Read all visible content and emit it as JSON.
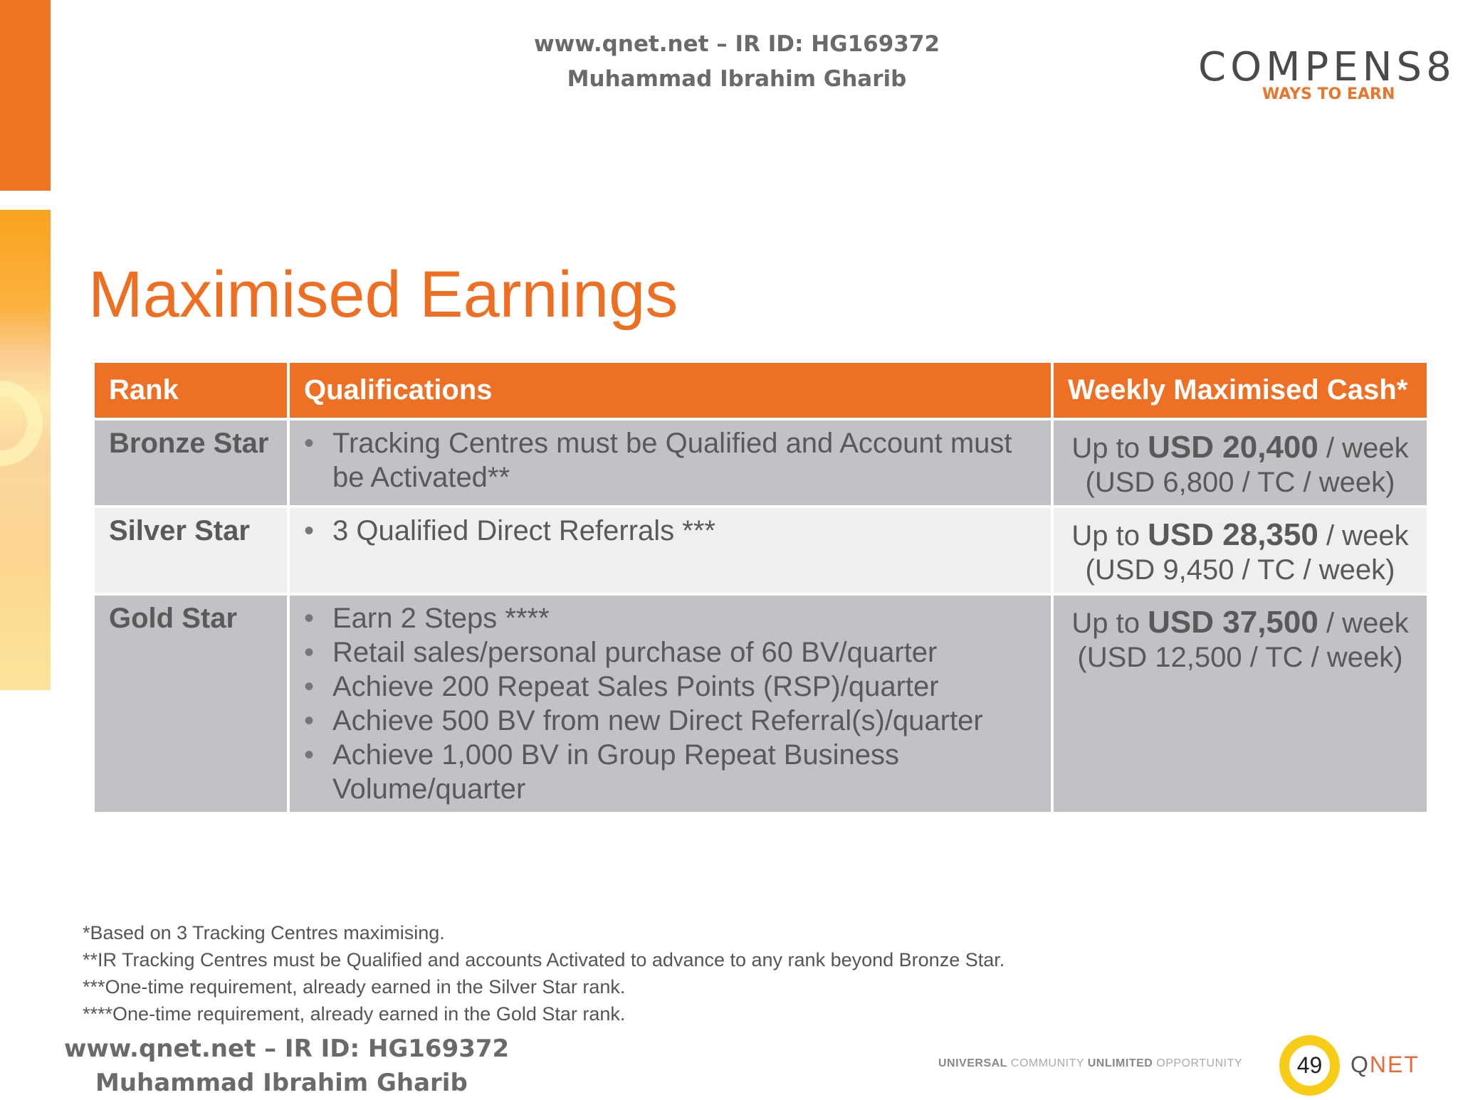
{
  "header": {
    "line1": "www.qnet.net – IR ID: HG169372",
    "line2": "Muhammad Ibrahim Gharib"
  },
  "logo": {
    "main": "COMPENS8",
    "sub": "WAYS TO EARN"
  },
  "title": "Maximised Earnings",
  "table": {
    "headers": [
      "Rank",
      "Qualifications",
      "Weekly Maximised Cash*"
    ],
    "rows": [
      {
        "rank": "Bronze Star",
        "quals": [
          "Tracking Centres must be Qualified and Account must be Activated**"
        ],
        "cash_pre": "Up to ",
        "cash_amount": "USD 20,400",
        "cash_post": " / week",
        "cash_tc": "(USD 6,800 / TC / week)"
      },
      {
        "rank": "Silver Star",
        "quals": [
          "3 Qualified Direct Referrals ***"
        ],
        "cash_pre": "Up to ",
        "cash_amount": "USD 28,350",
        "cash_post": " / week",
        "cash_tc": "(USD 9,450 / TC / week)"
      },
      {
        "rank": "Gold Star",
        "quals": [
          "Earn 2 Steps ****",
          "Retail sales/personal purchase of 60 BV/quarter",
          "Achieve 200 Repeat Sales Points (RSP)/quarter",
          "Achieve 500 BV from new Direct Referral(s)/quarter",
          "Achieve 1,000 BV in Group Repeat Business Volume/quarter"
        ],
        "cash_pre": "Up to ",
        "cash_amount": "USD 37,500",
        "cash_post": " / week",
        "cash_tc": "(USD 12,500 / TC / week)"
      }
    ]
  },
  "footnotes": [
    "*Based on 3 Tracking Centres maximising.",
    "**IR Tracking Centres must be Qualified and accounts Activated to advance to any rank beyond Bronze Star.",
    "***One-time requirement, already earned in the Silver Star rank.",
    "****One-time requirement, already earned in the Gold Star rank."
  ],
  "watermark": {
    "line1": "www.qnet.net – IR ID: HG169372",
    "line2": "Muhammad Ibrahim Gharib"
  },
  "tagline": {
    "w1": "UNIVERSAL",
    "w2": " COMMUNITY ",
    "w3": "UNLIMITED",
    "w4": " OPPORTUNITY"
  },
  "page_number": "49",
  "brand": {
    "q": "Q",
    "rest": "NET"
  },
  "colors": {
    "accent": "#ee7024",
    "row_dark": "#c2c1c5",
    "row_light": "#efeff2",
    "page_ring": "#f7cc16"
  }
}
